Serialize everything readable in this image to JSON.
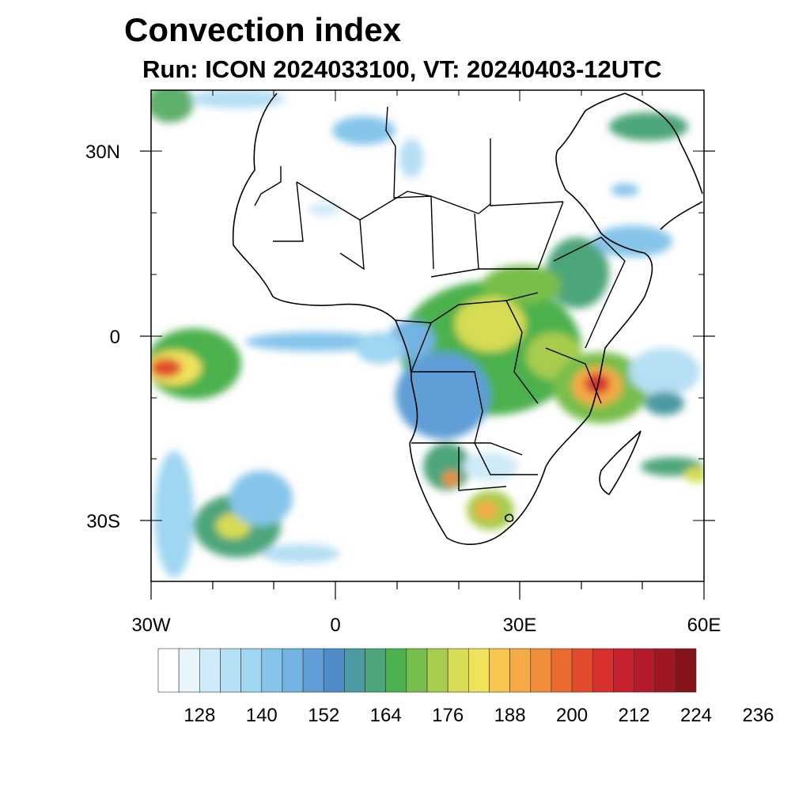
{
  "title": "Convection index",
  "subtitle": "Run: ICON 2024033100,  VT: 20240403-12UTC",
  "axes": {
    "lat_ticks": [
      {
        "lat": 30,
        "label": "30N"
      },
      {
        "lat": 0,
        "label": "0"
      },
      {
        "lat": -30,
        "label": "30S"
      }
    ],
    "lon_ticks": [
      {
        "lon": -30,
        "label": "30W"
      },
      {
        "lon": 0,
        "label": "0"
      },
      {
        "lon": 30,
        "label": "30E"
      },
      {
        "lon": 60,
        "label": "60E"
      }
    ],
    "lon_range": [
      -30,
      60
    ],
    "lat_range": [
      -40,
      40
    ]
  },
  "colorbar": {
    "colors": [
      "#ffffff",
      "#e8f5fc",
      "#cfeaf8",
      "#b5dff4",
      "#9fd6f2",
      "#86c5ea",
      "#73b3e2",
      "#5f9ed6",
      "#4f8bc6",
      "#4c9aa2",
      "#4da57a",
      "#4bb14e",
      "#78be4c",
      "#a8cc4e",
      "#d6dc53",
      "#f1e25c",
      "#f7c651",
      "#f4aa45",
      "#f08d3a",
      "#ea6a2f",
      "#e14b2c",
      "#d8302d",
      "#c72230",
      "#b41a2a",
      "#9f1722",
      "#861319"
    ],
    "labels": [
      "128",
      "140",
      "152",
      "164",
      "176",
      "188",
      "200",
      "212",
      "224",
      "236"
    ]
  }
}
